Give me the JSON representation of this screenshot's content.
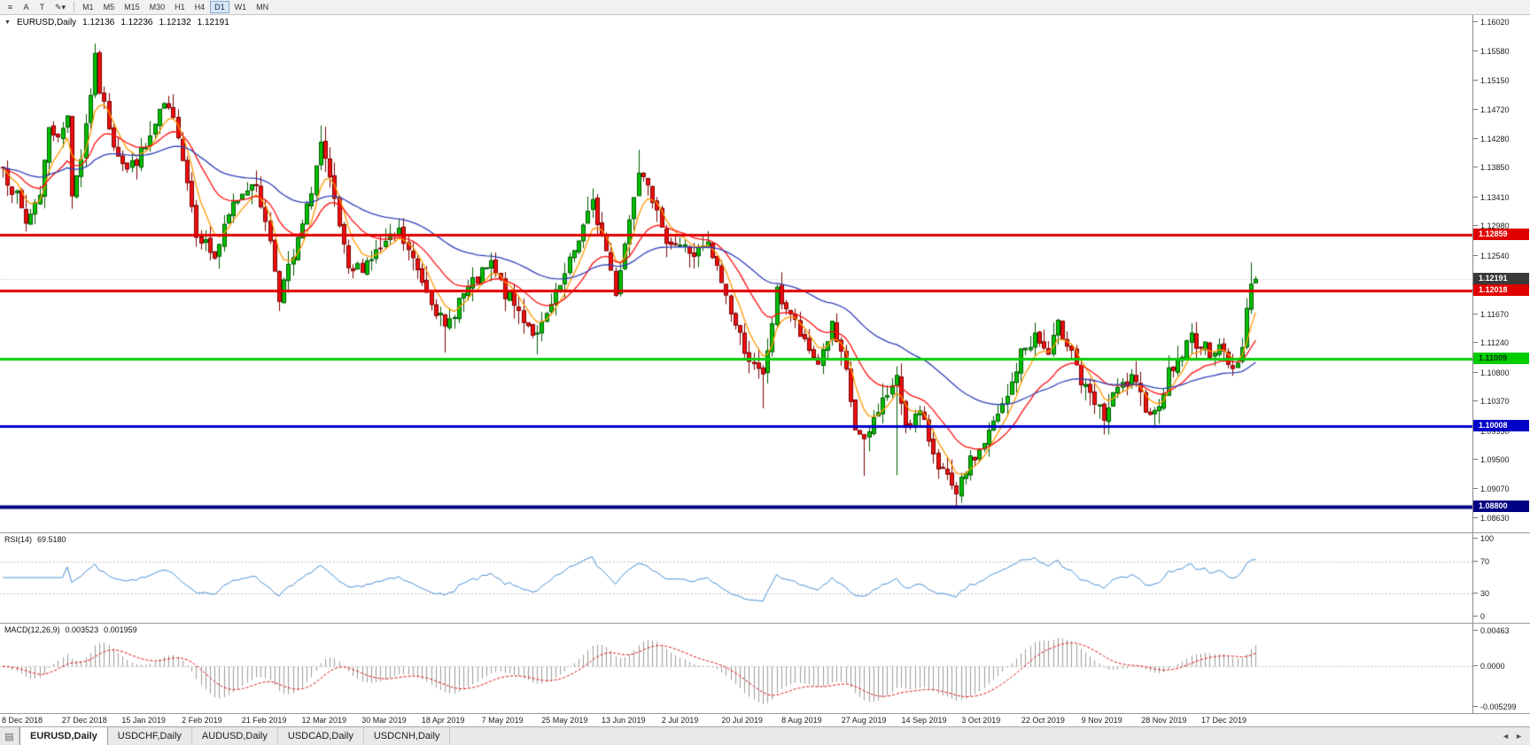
{
  "toolbar": {
    "tools": [
      {
        "name": "menu-icon",
        "glyph": "≡"
      },
      {
        "name": "cursor-icon",
        "glyph": "A"
      },
      {
        "name": "text-tool-icon",
        "glyph": "T"
      },
      {
        "name": "draw-tools-icon",
        "glyph": "✎▾"
      }
    ],
    "timeframes": [
      "M1",
      "M5",
      "M15",
      "M30",
      "H1",
      "H4",
      "D1",
      "W1",
      "MN"
    ],
    "active_timeframe": "D1"
  },
  "header": {
    "collapse": "▼",
    "symbol": "EURUSD,Daily",
    "open": "1.12136",
    "high": "1.12236",
    "low": "1.12132",
    "close": "1.12191"
  },
  "tabs": {
    "icon": "▤",
    "items": [
      {
        "label": "EURUSD,Daily",
        "active": true
      },
      {
        "label": "USDCHF,Daily",
        "active": false
      },
      {
        "label": "AUDUSD,Daily",
        "active": false
      },
      {
        "label": "USDCAD,Daily",
        "active": false
      },
      {
        "label": "USDCNH,Daily",
        "active": false
      }
    ],
    "scroll_left": "◄",
    "scroll_right": "►"
  },
  "chart_data": {
    "type": "candlestick",
    "symbol": "EURUSD",
    "period": "Daily",
    "bars": 273,
    "last_bar": {
      "open": 1.12136,
      "high": 1.12236,
      "low": 1.12132,
      "close": 1.12191
    },
    "price_axis_ticks": [
      "1.16020",
      "1.15580",
      "1.15150",
      "1.14720",
      "1.14280",
      "1.13850",
      "1.13410",
      "1.12980",
      "1.12540",
      "1.12110",
      "1.11670",
      "1.11240",
      "1.10800",
      "1.10370",
      "1.09930",
      "1.09500",
      "1.09070",
      "1.08630"
    ],
    "x_axis_labels": [
      "8 Dec 2018",
      "27 Dec 2018",
      "15 Jan 2019",
      "2 Feb 2019",
      "21 Feb 2019",
      "12 Mar 2019",
      "30 Mar 2019",
      "18 Apr 2019",
      "7 May 2019",
      "25 May 2019",
      "13 Jun 2019",
      "2 Jul 2019",
      "20 Jul 2019",
      "8 Aug 2019",
      "27 Aug 2019",
      "14 Sep 2019",
      "3 Oct 2019",
      "22 Oct 2019",
      "9 Nov 2019",
      "28 Nov 2019",
      "17 Dec 2019"
    ],
    "visible_price_range": [
      1.0842,
      1.1613
    ],
    "close_anchors": [
      [
        0,
        1.1385
      ],
      [
        3,
        1.134
      ],
      [
        5,
        1.1302
      ],
      [
        8,
        1.135
      ],
      [
        10,
        1.144
      ],
      [
        13,
        1.1438
      ],
      [
        14,
        1.1462
      ],
      [
        15,
        1.135
      ],
      [
        17,
        1.1402
      ],
      [
        20,
        1.1545
      ],
      [
        21,
        1.1502
      ],
      [
        24,
        1.1424
      ],
      [
        27,
        1.1382
      ],
      [
        31,
        1.1414
      ],
      [
        35,
        1.1478
      ],
      [
        38,
        1.144
      ],
      [
        42,
        1.1292
      ],
      [
        46,
        1.1252
      ],
      [
        50,
        1.133
      ],
      [
        54,
        1.1368
      ],
      [
        57,
        1.1312
      ],
      [
        60,
        1.1196
      ],
      [
        63,
        1.125
      ],
      [
        66,
        1.1322
      ],
      [
        69,
        1.142
      ],
      [
        72,
        1.1332
      ],
      [
        75,
        1.1226
      ],
      [
        78,
        1.124
      ],
      [
        82,
        1.1264
      ],
      [
        86,
        1.1288
      ],
      [
        90,
        1.1232
      ],
      [
        93,
        1.1192
      ],
      [
        96,
        1.1142
      ],
      [
        99,
        1.1188
      ],
      [
        103,
        1.1218
      ],
      [
        106,
        1.124
      ],
      [
        109,
        1.1198
      ],
      [
        113,
        1.1162
      ],
      [
        116,
        1.1132
      ],
      [
        119,
        1.1178
      ],
      [
        122,
        1.1222
      ],
      [
        125,
        1.1282
      ],
      [
        128,
        1.133
      ],
      [
        131,
        1.1262
      ],
      [
        133,
        1.1202
      ],
      [
        136,
        1.1308
      ],
      [
        138,
        1.1388
      ],
      [
        140,
        1.137
      ],
      [
        143,
        1.1286
      ],
      [
        147,
        1.127
      ],
      [
        150,
        1.1256
      ],
      [
        153,
        1.1268
      ],
      [
        156,
        1.1216
      ],
      [
        159,
        1.115
      ],
      [
        163,
        1.1086
      ],
      [
        165,
        1.1072
      ],
      [
        168,
        1.1198
      ],
      [
        171,
        1.1168
      ],
      [
        174,
        1.112
      ],
      [
        177,
        1.1096
      ],
      [
        180,
        1.1148
      ],
      [
        183,
        1.1078
      ],
      [
        185,
        1.0996
      ],
      [
        187,
        1.0972
      ],
      [
        190,
        1.1028
      ],
      [
        193,
        1.1058
      ],
      [
        194,
        1.1068
      ],
      [
        196,
        1.1006
      ],
      [
        199,
        1.1018
      ],
      [
        203,
        1.0946
      ],
      [
        206,
        1.0906
      ],
      [
        207,
        1.0892
      ],
      [
        209,
        1.0936
      ],
      [
        212,
        1.0964
      ],
      [
        215,
        1.1002
      ],
      [
        218,
        1.1042
      ],
      [
        221,
        1.1108
      ],
      [
        224,
        1.1134
      ],
      [
        227,
        1.1106
      ],
      [
        229,
        1.1148
      ],
      [
        232,
        1.1118
      ],
      [
        234,
        1.1064
      ],
      [
        237,
        1.1032
      ],
      [
        239,
        1.1014
      ],
      [
        242,
        1.1054
      ],
      [
        245,
        1.1068
      ],
      [
        248,
        1.1032
      ],
      [
        250,
        1.1018
      ],
      [
        253,
        1.1078
      ],
      [
        256,
        1.1108
      ],
      [
        258,
        1.1134
      ],
      [
        260,
        1.1118
      ],
      [
        262,
        1.1112
      ],
      [
        264,
        1.1124
      ],
      [
        266,
        1.1088
      ],
      [
        268,
        1.1094
      ],
      [
        269,
        1.1126
      ],
      [
        270,
        1.1176
      ],
      [
        271,
        1.1213
      ],
      [
        272,
        1.12191
      ]
    ],
    "wick_highs": [
      [
        20,
        1.157
      ],
      [
        69,
        1.1448
      ],
      [
        138,
        1.1412
      ],
      [
        271,
        1.1244
      ],
      [
        272,
        1.12236
      ]
    ],
    "wick_lows": [
      [
        15,
        1.1325
      ],
      [
        96,
        1.111
      ],
      [
        116,
        1.1107
      ],
      [
        165,
        1.1027
      ],
      [
        187,
        1.0926
      ],
      [
        194,
        1.0927
      ],
      [
        207,
        1.0879
      ],
      [
        272,
        1.12132
      ]
    ],
    "candle_up_color": "#00c000",
    "candle_down_color": "#ef1010",
    "candle_up_border": "#005a00",
    "candle_down_border": "#7d0000",
    "moving_averages": [
      {
        "name": "ma-fast",
        "period": 6,
        "color": "#ff9900"
      },
      {
        "name": "ma-medium",
        "period": 18,
        "color": "#ff1010"
      },
      {
        "name": "ma-slow",
        "period": 50,
        "color": "#3040b8"
      }
    ],
    "horizontal_levels": [
      {
        "label": "1.12859",
        "value": 1.12859,
        "color": "#e00000",
        "text_color": "#ffffff",
        "width": 3
      },
      {
        "label": "1.12018",
        "value": 1.12018,
        "color": "#e00000",
        "text_color": "#ffffff",
        "width": 3
      },
      {
        "label": "1.11009",
        "value": 1.11009,
        "color": "#00ce00",
        "text_color": "#00330 0",
        "width": 3
      },
      {
        "label": "1.10008",
        "value": 1.10008,
        "color": "#0000c8",
        "text_color": "#ffffff",
        "width": 3
      },
      {
        "label": "1.08800",
        "value": 1.088,
        "color": "#000082",
        "text_color": "#ffffff",
        "width": 4
      }
    ],
    "current_price": {
      "label": "1.12191",
      "value": 1.12191,
      "badge_color": "#3a3a3a",
      "text_color": "#ffffff",
      "line_color": "#b4b4b4"
    },
    "indicators": [
      {
        "id": "rsi",
        "label": "RSI(14)",
        "value": "69.5180",
        "period": 14,
        "range": [
          0,
          100
        ],
        "guide_levels": [
          70,
          30
        ],
        "axis_labels": [
          "100",
          "70",
          "30",
          "0"
        ],
        "line_color": "#4a8fd4"
      },
      {
        "id": "macd",
        "label": "MACD(12,26,9)",
        "main_value": "0.003523",
        "signal_value": "0.001959",
        "fast": 12,
        "slow": 26,
        "signal": 9,
        "range": [
          -0.005299,
          0.00463
        ],
        "axis_labels": [
          "0.00463",
          "0.0000",
          "-0.005299"
        ],
        "histogram_color": "#9b9b9b",
        "signal_color": "#e01010"
      }
    ]
  }
}
